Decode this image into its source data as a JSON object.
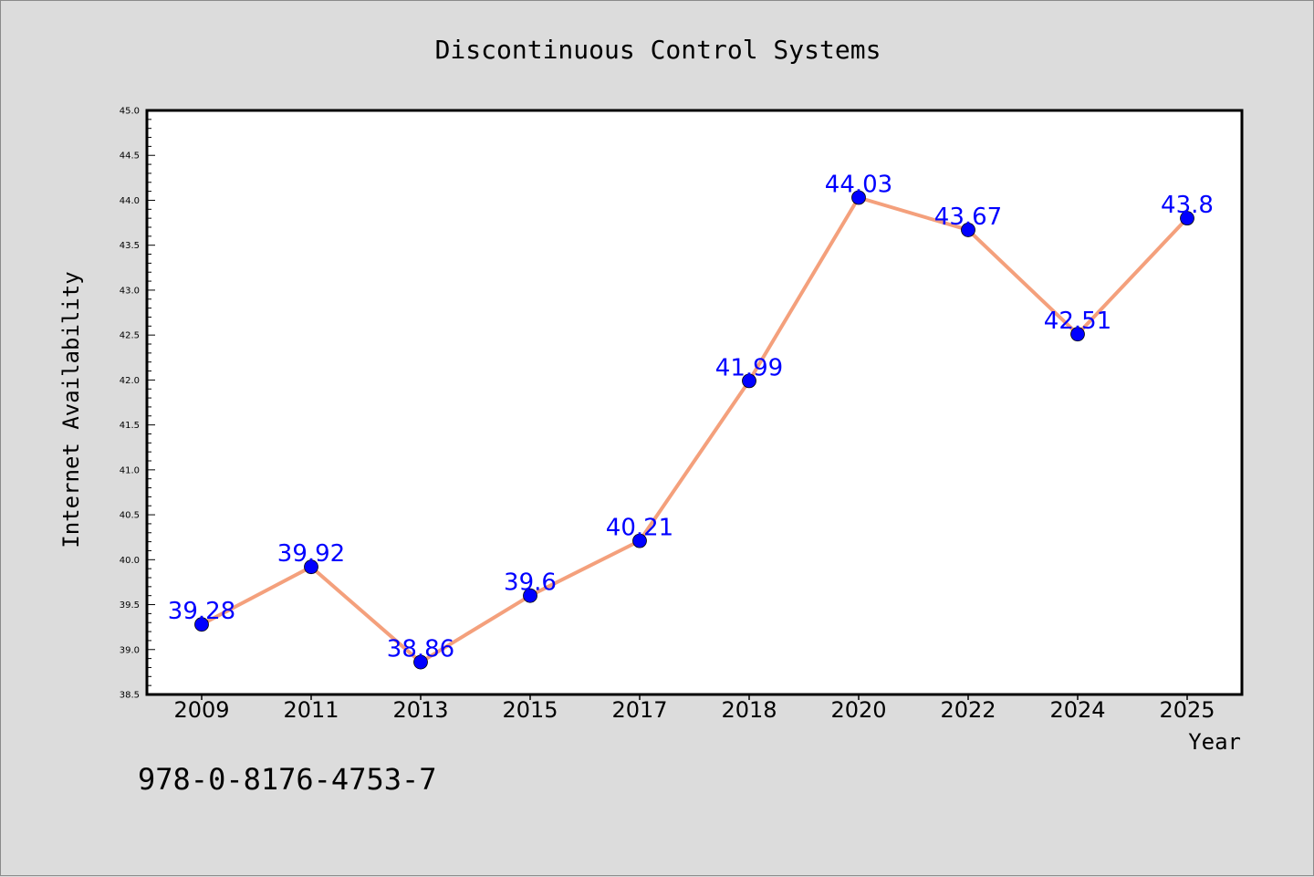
{
  "chart_data": {
    "type": "line",
    "title": "Discontinuous Control Systems",
    "xlabel": "Year",
    "ylabel": "Internet Availability",
    "categories": [
      "2009",
      "2011",
      "2013",
      "2015",
      "2017",
      "2018",
      "2020",
      "2022",
      "2024",
      "2025"
    ],
    "series": [
      {
        "values": [
          39.28,
          39.92,
          38.86,
          39.6,
          40.21,
          41.99,
          44.03,
          43.67,
          42.51,
          43.8
        ],
        "labels": [
          "39.28",
          "39.92",
          "38.86",
          "39.6",
          "40.21",
          "41.99",
          "44.03",
          "43.67",
          "42.51",
          "43.8"
        ]
      }
    ],
    "ylim": [
      38.5,
      45.0
    ],
    "yticks": [
      38.5,
      39.0,
      39.5,
      40.0,
      40.5,
      41.0,
      41.5,
      42.0,
      42.5,
      43.0,
      43.5,
      44.0,
      44.5,
      45.0
    ],
    "ytick_labels": [
      "38.5",
      "39.0",
      "39.5",
      "40.0",
      "40.5",
      "41.0",
      "41.5",
      "42.0",
      "42.5",
      "43.0",
      "43.5",
      "44.0",
      "44.5",
      "45.0"
    ],
    "grid": false,
    "legend": false,
    "colors": {
      "line": "#f4a07c",
      "marker": "#0000ff",
      "label": "#0000ff",
      "background": "#dcdcdc",
      "plot_background": "#ffffff"
    }
  },
  "annotation": "978-0-8176-4753-7"
}
